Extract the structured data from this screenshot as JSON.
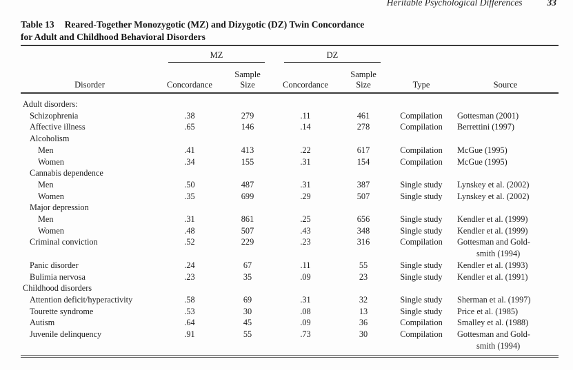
{
  "page": {
    "running_head": "Heritable Psychological Differences",
    "page_number": "33"
  },
  "table": {
    "caption_label": "Table 13",
    "caption_title_line1": "Reared-Together Monozygotic (MZ) and Dizygotic (DZ) Twin Concordance",
    "caption_title_line2": "for Adult and Childhood Behavioral Disorders",
    "group_headers": {
      "mz": "MZ",
      "dz": "DZ"
    },
    "columns": {
      "disorder": "Disorder",
      "concordance": "Concordance",
      "sample_line1": "Sample",
      "sample_line2": "Size",
      "type": "Type",
      "source": "Source"
    },
    "rows": [
      {
        "disorder": "Adult disorders:",
        "indent": 0
      },
      {
        "disorder": "Schizophrenia",
        "indent": 1,
        "mz_concordance": ".38",
        "mz_sample_size": "279",
        "dz_concordance": ".11",
        "dz_sample_size": "461",
        "type": "Compilation",
        "source": "Gottesman (2001)"
      },
      {
        "disorder": "Affective illness",
        "indent": 1,
        "mz_concordance": ".65",
        "mz_sample_size": "146",
        "dz_concordance": ".14",
        "dz_sample_size": "278",
        "type": "Compilation",
        "source": "Berrettini (1997)"
      },
      {
        "disorder": "Alcoholism",
        "indent": 1
      },
      {
        "disorder": "Men",
        "indent": 2,
        "mz_concordance": ".41",
        "mz_sample_size": "413",
        "dz_concordance": ".22",
        "dz_sample_size": "617",
        "type": "Compilation",
        "source": "McGue (1995)"
      },
      {
        "disorder": "Women",
        "indent": 2,
        "mz_concordance": ".34",
        "mz_sample_size": "155",
        "dz_concordance": ".31",
        "dz_sample_size": "154",
        "type": "Compilation",
        "source": "McGue (1995)"
      },
      {
        "disorder": "Cannabis dependence",
        "indent": 1
      },
      {
        "disorder": "Men",
        "indent": 2,
        "mz_concordance": ".50",
        "mz_sample_size": "487",
        "dz_concordance": ".31",
        "dz_sample_size": "387",
        "type": "Single study",
        "source": "Lynskey et al. (2002)"
      },
      {
        "disorder": "Women",
        "indent": 2,
        "mz_concordance": ".35",
        "mz_sample_size": "699",
        "dz_concordance": ".29",
        "dz_sample_size": "507",
        "type": "Single study",
        "source": "Lynskey et al. (2002)"
      },
      {
        "disorder": "Major depression",
        "indent": 1
      },
      {
        "disorder": "Men",
        "indent": 2,
        "mz_concordance": ".31",
        "mz_sample_size": "861",
        "dz_concordance": ".25",
        "dz_sample_size": "656",
        "type": "Single study",
        "source": "Kendler et al. (1999)"
      },
      {
        "disorder": "Women",
        "indent": 2,
        "mz_concordance": ".48",
        "mz_sample_size": "507",
        "dz_concordance": ".43",
        "dz_sample_size": "348",
        "type": "Single study",
        "source": "Kendler et al. (1999)"
      },
      {
        "disorder": "Criminal conviction",
        "indent": 1,
        "mz_concordance": ".52",
        "mz_sample_size": "229",
        "dz_concordance": ".23",
        "dz_sample_size": "316",
        "type": "Compilation",
        "source": "Gottesman and Gold-",
        "source_line2": "smith (1994)"
      },
      {
        "disorder": "Panic disorder",
        "indent": 1,
        "mz_concordance": ".24",
        "mz_sample_size": "67",
        "dz_concordance": ".11",
        "dz_sample_size": "55",
        "type": "Single study",
        "source": "Kendler et al. (1993)"
      },
      {
        "disorder": "Bulimia nervosa",
        "indent": 1,
        "mz_concordance": ".23",
        "mz_sample_size": "35",
        "dz_concordance": ".09",
        "dz_sample_size": "23",
        "type": "Single study",
        "source": "Kendler et al. (1991)"
      },
      {
        "disorder": "Childhood disorders",
        "indent": 0
      },
      {
        "disorder": "Attention deficit/hyperactivity",
        "indent": 1,
        "mz_concordance": ".58",
        "mz_sample_size": "69",
        "dz_concordance": ".31",
        "dz_sample_size": "32",
        "type": "Single study",
        "source": "Sherman et al. (1997)"
      },
      {
        "disorder": "Tourette syndrome",
        "indent": 1,
        "mz_concordance": ".53",
        "mz_sample_size": "30",
        "dz_concordance": ".08",
        "dz_sample_size": "13",
        "type": "Single study",
        "source": "Price et al. (1985)"
      },
      {
        "disorder": "Autism",
        "indent": 1,
        "mz_concordance": ".64",
        "mz_sample_size": "45",
        "dz_concordance": ".09",
        "dz_sample_size": "36",
        "type": "Compilation",
        "source": "Smalley et al. (1988)"
      },
      {
        "disorder": "Juvenile delinquency",
        "indent": 1,
        "mz_concordance": ".91",
        "mz_sample_size": "55",
        "dz_concordance": ".73",
        "dz_sample_size": "30",
        "type": "Compilation",
        "source": "Gottesman and Gold-",
        "source_line2": "smith (1994)"
      }
    ]
  }
}
